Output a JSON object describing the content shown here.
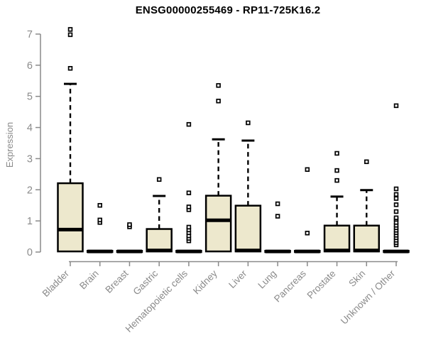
{
  "title": "ENSG00000255469 - RP11-725K16.2",
  "colors": {
    "box_fill": "#EDE8CD",
    "box_stroke": "#000000",
    "axis": "#8A8A8A",
    "title": "#000000",
    "background": "#FFFFFF"
  },
  "chart_data": {
    "type": "boxplot",
    "title": "ENSG00000255469 - RP11-725K16.2",
    "xlabel": "",
    "ylabel": "Expression",
    "ylim": [
      0,
      7.2
    ],
    "yticks": [
      0,
      1,
      2,
      3,
      4,
      5,
      6,
      7
    ],
    "grid": false,
    "legend": false,
    "categories": [
      "Bladder",
      "Brain",
      "Breast",
      "Gastric",
      "Hematopoietic cells",
      "Kidney",
      "Liver",
      "Lung",
      "Pancreas",
      "Prostate",
      "Skin",
      "Unknown / Other"
    ],
    "boxes": [
      {
        "category": "Bladder",
        "q1": 0.02,
        "median": 0.72,
        "q3": 2.21,
        "whisker_low": 0,
        "whisker_high": 5.4,
        "outliers": [
          5.9,
          6.98,
          7.15
        ]
      },
      {
        "category": "Brain",
        "q1": 0,
        "median": 0.02,
        "q3": 0.04,
        "whisker_low": 0,
        "whisker_high": 0.04,
        "outliers": [
          0.95,
          1.03,
          1.5
        ]
      },
      {
        "category": "Breast",
        "q1": 0,
        "median": 0.02,
        "q3": 0.04,
        "whisker_low": 0,
        "whisker_high": 0.04,
        "outliers": [
          0.81,
          0.88
        ]
      },
      {
        "category": "Gastric",
        "q1": 0.02,
        "median": 0.05,
        "q3": 0.74,
        "whisker_low": 0,
        "whisker_high": 1.8,
        "outliers": [
          2.33
        ]
      },
      {
        "category": "Hematopoietic cells",
        "q1": 0,
        "median": 0.02,
        "q3": 0.04,
        "whisker_low": 0,
        "whisker_high": 0.04,
        "outliers": [
          0.36,
          0.44,
          0.52,
          0.62,
          0.71,
          0.8,
          1.36,
          1.45,
          1.9,
          4.1
        ]
      },
      {
        "category": "Kidney",
        "q1": 0.02,
        "median": 1.02,
        "q3": 1.81,
        "whisker_low": 0,
        "whisker_high": 3.62,
        "outliers": [
          4.85,
          5.35
        ]
      },
      {
        "category": "Liver",
        "q1": 0.02,
        "median": 0.05,
        "q3": 1.49,
        "whisker_low": 0,
        "whisker_high": 3.58,
        "outliers": [
          4.15
        ]
      },
      {
        "category": "Lung",
        "q1": 0,
        "median": 0.02,
        "q3": 0.04,
        "whisker_low": 0,
        "whisker_high": 0.04,
        "outliers": [
          1.15,
          1.55
        ]
      },
      {
        "category": "Pancreas",
        "q1": 0,
        "median": 0.02,
        "q3": 0.04,
        "whisker_low": 0,
        "whisker_high": 0.04,
        "outliers": [
          0.61,
          2.65
        ]
      },
      {
        "category": "Prostate",
        "q1": 0.02,
        "median": 0.05,
        "q3": 0.85,
        "whisker_low": 0,
        "whisker_high": 1.78,
        "outliers": [
          2.3,
          2.62,
          3.17
        ]
      },
      {
        "category": "Skin",
        "q1": 0.02,
        "median": 0.05,
        "q3": 0.85,
        "whisker_low": 0,
        "whisker_high": 1.99,
        "outliers": [
          2.9
        ]
      },
      {
        "category": "Unknown / Other",
        "q1": 0,
        "median": 0.02,
        "q3": 0.04,
        "whisker_low": 0,
        "whisker_high": 0.04,
        "outliers": [
          0.23,
          0.3,
          0.38,
          0.46,
          0.54,
          0.62,
          0.7,
          0.78,
          0.86,
          0.95,
          1.05,
          1.1,
          1.3,
          1.52,
          1.72,
          1.85,
          2.03,
          4.7
        ]
      }
    ]
  }
}
